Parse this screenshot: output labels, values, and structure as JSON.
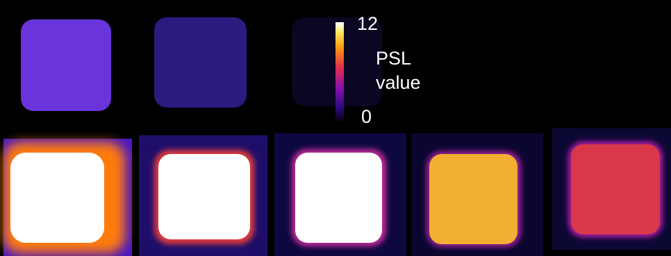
{
  "colorbar": {
    "ticks": [
      12,
      0
    ],
    "label_lines": [
      "PSL",
      "value"
    ]
  }
}
